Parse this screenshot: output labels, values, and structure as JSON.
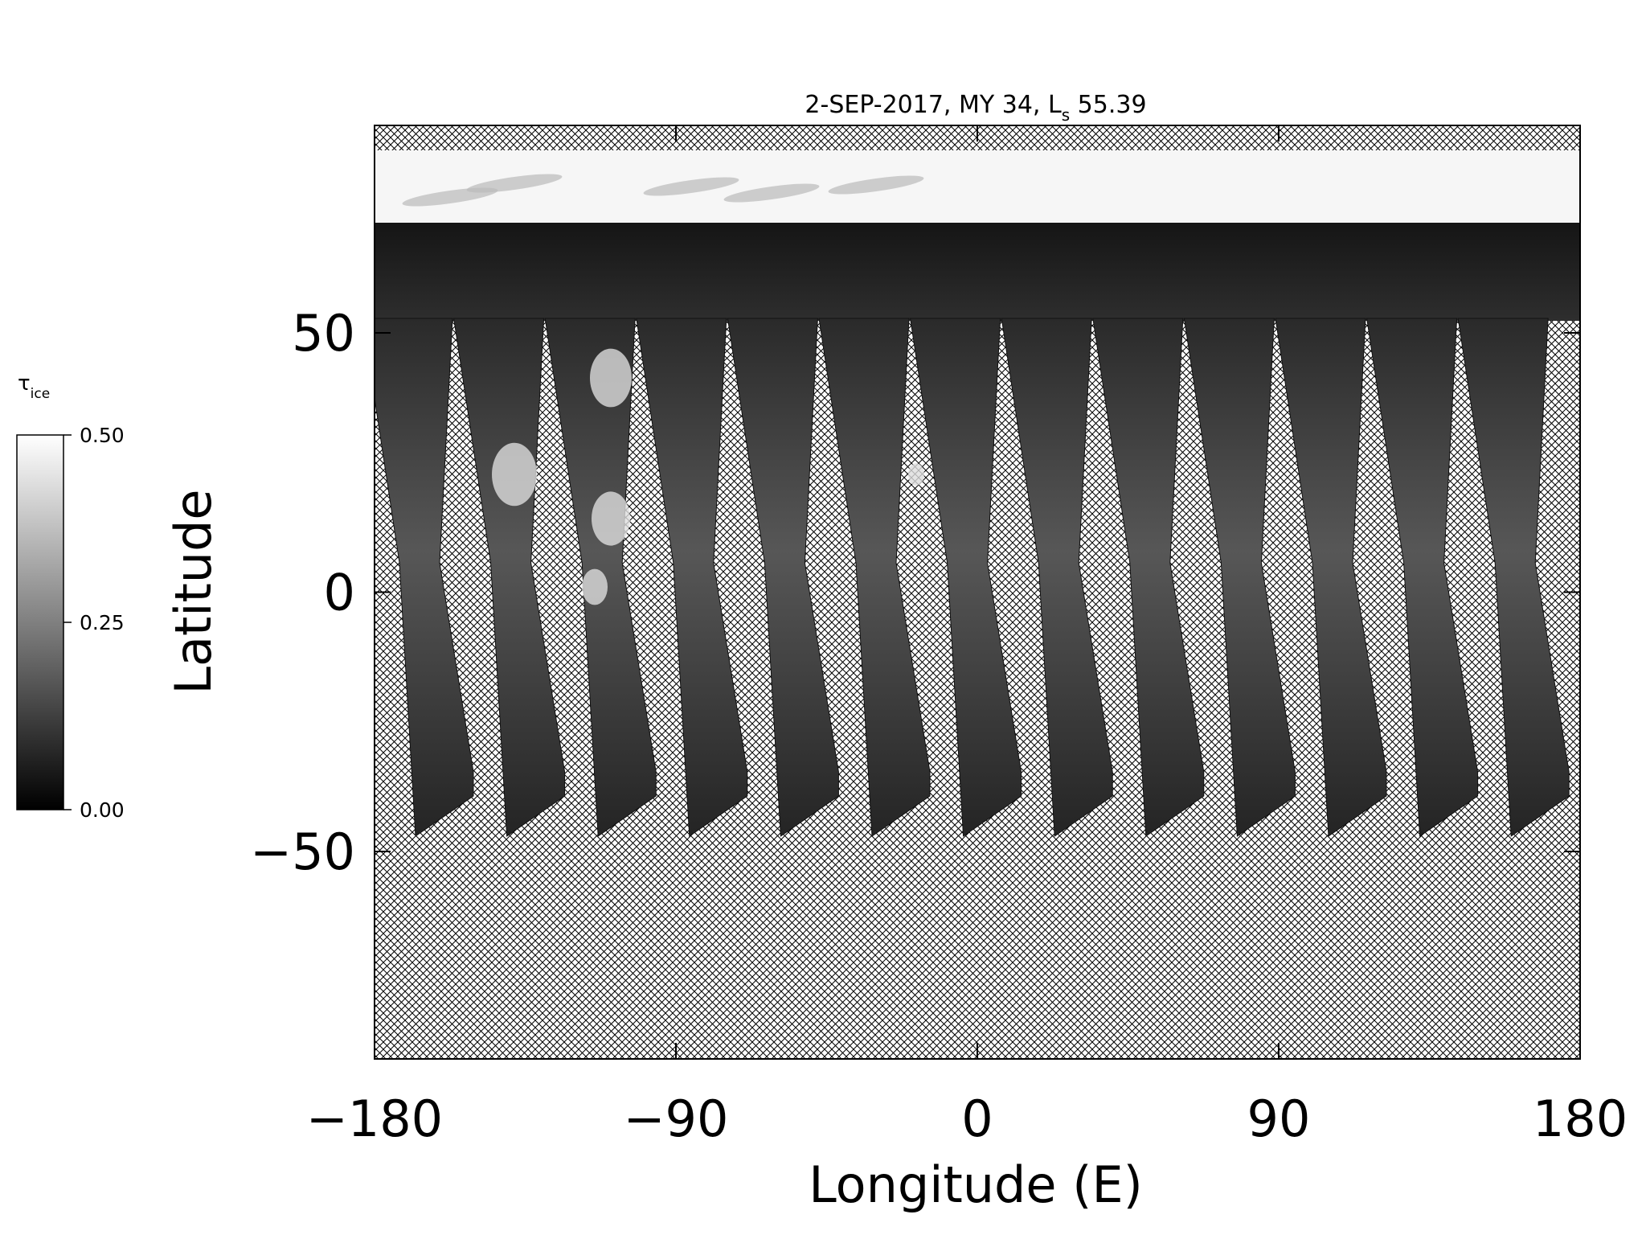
{
  "chart_data": {
    "type": "map",
    "title": "2-SEP-2017, MY 34,  L",
    "title_subscript": "s",
    "title_suffix": " 55.39",
    "xlabel": "Longitude (E)",
    "ylabel": "Latitude",
    "xlim": [
      -180,
      180
    ],
    "xticks": [
      {
        "value": -180,
        "label": "−180"
      },
      {
        "value": -90,
        "label": "−90"
      },
      0,
      90,
      180
    ],
    "ylim": [
      -90,
      90
    ],
    "yticks": [
      {
        "value": -50,
        "label": "−50"
      },
      0,
      50
    ],
    "colorbar": {
      "label": "τ",
      "label_subscript": "ice",
      "lim": [
        0,
        0.5
      ],
      "ticks": [
        {
          "value": 0,
          "label": "0.00"
        },
        {
          "value": 0.25,
          "label": "0.25"
        },
        {
          "value": 0.5,
          "label": "0.50"
        }
      ]
    }
  }
}
